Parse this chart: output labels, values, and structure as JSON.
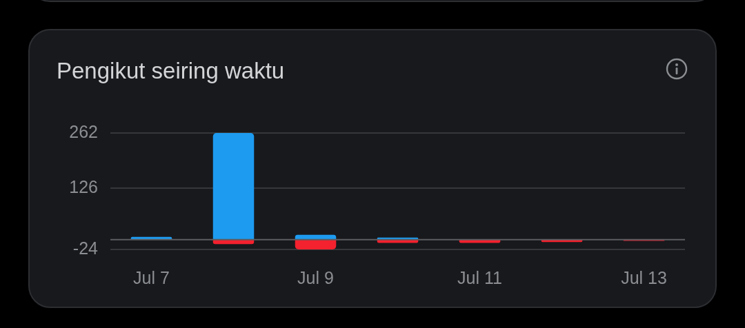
{
  "chart_data": {
    "type": "bar",
    "title": "Pengikut seiring waktu",
    "categories": [
      "Jul 7",
      null,
      "Jul 9",
      null,
      "Jul 11",
      null,
      "Jul 13"
    ],
    "series": [
      {
        "color": "#1d9bf0",
        "values": [
          7,
          262,
          12,
          5,
          0,
          0,
          0
        ]
      },
      {
        "color": "#f4212e",
        "values": [
          0,
          -11,
          -24,
          -8,
          -8,
          -6,
          -3
        ]
      }
    ],
    "stacked": true,
    "ylim": [
      -24,
      262
    ],
    "yticks": [
      -24,
      126,
      262
    ],
    "grid": "y",
    "legend": false,
    "ref_lines": [
      {
        "axis": "y",
        "value": 0,
        "color": "#5b5d61"
      }
    ]
  }
}
